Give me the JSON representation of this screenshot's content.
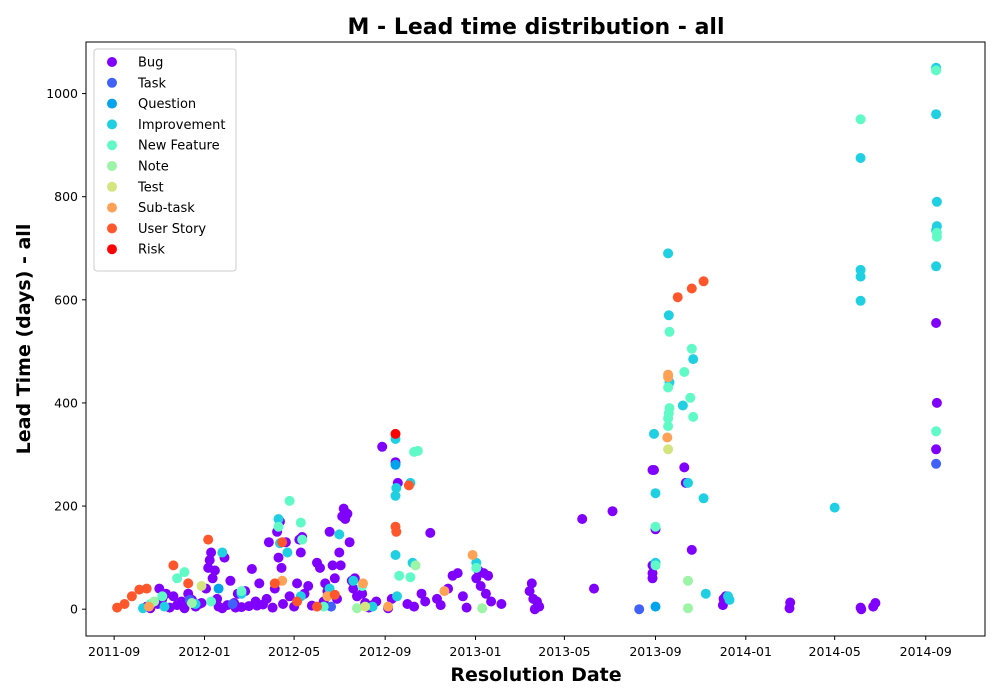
{
  "chart_data": {
    "type": "scatter",
    "title": "M - Lead time distribution - all",
    "xlabel": "Resolution Date",
    "ylabel": "Lead Time (days) - all",
    "x_ticks": [
      "2011-09",
      "2012-01",
      "2012-05",
      "2012-09",
      "2013-01",
      "2013-05",
      "2013-09",
      "2014-01",
      "2014-05",
      "2014-09"
    ],
    "y_ticks": [
      0,
      200,
      400,
      600,
      800,
      1000
    ],
    "xlim": [
      "2011-07-25",
      "2014-11-20"
    ],
    "ylim": [
      -52,
      1100
    ],
    "grid": false,
    "legend_position": "top-left",
    "series": [
      {
        "name": "Bug",
        "color": "#8000ff",
        "points": [
          [
            "2011-10-15",
            5
          ],
          [
            "2011-10-20",
            2
          ],
          [
            "2011-10-30",
            10
          ],
          [
            "2011-11-05",
            20
          ],
          [
            "2011-11-10",
            30
          ],
          [
            "2011-11-15",
            3
          ],
          [
            "2011-11-20",
            25
          ],
          [
            "2011-11-25",
            8
          ],
          [
            "2011-12-01",
            15
          ],
          [
            "2011-12-05",
            2
          ],
          [
            "2011-12-10",
            30
          ],
          [
            "2011-12-15",
            18
          ],
          [
            "2011-12-20",
            5
          ],
          [
            "2011-12-25",
            10
          ],
          [
            "2011-12-28",
            12
          ],
          [
            "2012-01-03",
            40
          ],
          [
            "2012-01-06",
            80
          ],
          [
            "2012-01-08",
            95
          ],
          [
            "2012-01-10",
            110
          ],
          [
            "2012-01-12",
            60
          ],
          [
            "2012-01-15",
            75
          ],
          [
            "2012-01-18",
            20
          ],
          [
            "2012-01-20",
            5
          ],
          [
            "2012-01-25",
            2
          ],
          [
            "2012-01-28",
            100
          ],
          [
            "2012-02-01",
            8
          ],
          [
            "2012-02-05",
            55
          ],
          [
            "2012-02-10",
            12
          ],
          [
            "2012-02-15",
            30
          ],
          [
            "2012-02-20",
            4
          ],
          [
            "2012-02-25",
            35
          ],
          [
            "2012-03-01",
            6
          ],
          [
            "2012-03-05",
            78
          ],
          [
            "2012-03-10",
            15
          ],
          [
            "2012-03-15",
            50
          ],
          [
            "2012-03-20",
            9
          ],
          [
            "2012-03-25",
            20
          ],
          [
            "2012-03-28",
            130
          ],
          [
            "2012-04-02",
            3
          ],
          [
            "2012-04-05",
            40
          ],
          [
            "2012-04-08",
            150
          ],
          [
            "2012-04-10",
            100
          ],
          [
            "2012-04-12",
            170
          ],
          [
            "2012-04-14",
            80
          ],
          [
            "2012-04-16",
            10
          ],
          [
            "2012-04-20",
            130
          ],
          [
            "2012-04-25",
            25
          ],
          [
            "2012-05-01",
            5
          ],
          [
            "2012-05-05",
            50
          ],
          [
            "2012-05-08",
            135
          ],
          [
            "2012-05-10",
            110
          ],
          [
            "2012-05-12",
            140
          ],
          [
            "2012-05-15",
            30
          ],
          [
            "2012-05-20",
            45
          ],
          [
            "2012-05-25",
            7
          ],
          [
            "2012-06-01",
            90
          ],
          [
            "2012-06-05",
            80
          ],
          [
            "2012-06-10",
            15
          ],
          [
            "2012-06-15",
            35
          ],
          [
            "2012-06-18",
            150
          ],
          [
            "2012-06-22",
            85
          ],
          [
            "2012-06-25",
            60
          ],
          [
            "2012-06-28",
            20
          ],
          [
            "2012-07-01",
            110
          ],
          [
            "2012-07-03",
            85
          ],
          [
            "2012-07-05",
            180
          ],
          [
            "2012-07-07",
            195
          ],
          [
            "2012-07-09",
            175
          ],
          [
            "2012-07-12",
            185
          ],
          [
            "2012-07-15",
            130
          ],
          [
            "2012-07-18",
            55
          ],
          [
            "2012-07-20",
            40
          ],
          [
            "2012-07-25",
            25
          ],
          [
            "2012-08-01",
            30
          ],
          [
            "2012-08-05",
            12
          ],
          [
            "2012-08-10",
            3
          ],
          [
            "2012-08-15",
            8
          ],
          [
            "2012-08-20",
            15
          ],
          [
            "2012-08-28",
            315
          ],
          [
            "2012-09-05",
            2
          ],
          [
            "2012-09-10",
            20
          ],
          [
            "2012-09-15",
            285
          ],
          [
            "2012-09-18",
            245
          ],
          [
            "2012-10-01",
            10
          ],
          [
            "2012-10-10",
            5
          ],
          [
            "2012-10-20",
            30
          ],
          [
            "2012-10-25",
            15
          ],
          [
            "2012-11-01",
            148
          ],
          [
            "2012-11-10",
            20
          ],
          [
            "2012-11-15",
            8
          ],
          [
            "2012-11-25",
            40
          ],
          [
            "2012-12-01",
            65
          ],
          [
            "2012-12-08",
            70
          ],
          [
            "2012-12-15",
            25
          ],
          [
            "2012-12-20",
            3
          ],
          [
            "2013-01-02",
            60
          ],
          [
            "2013-01-05",
            75
          ],
          [
            "2013-01-08",
            45
          ],
          [
            "2013-01-12",
            70
          ],
          [
            "2013-01-15",
            30
          ],
          [
            "2013-01-18",
            65
          ],
          [
            "2013-01-22",
            15
          ],
          [
            "2013-02-05",
            10
          ],
          [
            "2013-03-15",
            35
          ],
          [
            "2013-03-18",
            50
          ],
          [
            "2013-03-20",
            20
          ],
          [
            "2013-03-22",
            0
          ],
          [
            "2013-03-25",
            15
          ],
          [
            "2013-03-28",
            5
          ],
          [
            "2013-05-25",
            175
          ],
          [
            "2013-06-10",
            40
          ],
          [
            "2013-07-05",
            190
          ],
          [
            "2013-08-28",
            270
          ],
          [
            "2013-08-30",
            270
          ],
          [
            "2013-09-01",
            155
          ],
          [
            "2013-08-28",
            85
          ],
          [
            "2013-08-28",
            60
          ],
          [
            "2013-08-28",
            70
          ],
          [
            "2013-10-10",
            275
          ],
          [
            "2013-10-12",
            245
          ],
          [
            "2013-10-20",
            115
          ],
          [
            "2013-12-01",
            8
          ],
          [
            "2013-12-02",
            20
          ],
          [
            "2013-12-05",
            25
          ],
          [
            "2014-03-01",
            2
          ],
          [
            "2014-03-02",
            13
          ],
          [
            "2014-06-05",
            3
          ],
          [
            "2014-06-06",
            0
          ],
          [
            "2014-06-22",
            5
          ],
          [
            "2014-06-25",
            12
          ],
          [
            "2014-09-15",
            555
          ],
          [
            "2014-09-16",
            400
          ],
          [
            "2014-09-15",
            310
          ],
          [
            "2011-11-01",
            40
          ],
          [
            "2012-06-12",
            50
          ],
          [
            "2012-07-22",
            60
          ],
          [
            "2012-03-12",
            7
          ],
          [
            "2012-02-12",
            3
          ]
        ]
      },
      {
        "name": "Task",
        "color": "#4062fa",
        "points": [
          [
            "2011-12-12",
            18
          ],
          [
            "2012-02-08",
            10
          ],
          [
            "2012-06-20",
            5
          ],
          [
            "2013-08-10",
            0
          ],
          [
            "2014-09-15",
            282
          ]
        ]
      },
      {
        "name": "Question",
        "color": "#00a4ec",
        "points": [
          [
            "2012-01-20",
            40
          ],
          [
            "2012-09-15",
            280
          ],
          [
            "2013-09-01",
            5
          ]
        ]
      },
      {
        "name": "Improvement",
        "color": "#1fd0e2",
        "points": [
          [
            "2011-10-10",
            2
          ],
          [
            "2011-11-08",
            5
          ],
          [
            "2011-12-20",
            10
          ],
          [
            "2012-01-25",
            110
          ],
          [
            "2012-02-20",
            30
          ],
          [
            "2012-04-10",
            175
          ],
          [
            "2012-04-12",
            128
          ],
          [
            "2012-04-22",
            110
          ],
          [
            "2012-05-10",
            25
          ],
          [
            "2012-06-18",
            40
          ],
          [
            "2012-07-01",
            145
          ],
          [
            "2012-07-20",
            55
          ],
          [
            "2012-08-15",
            5
          ],
          [
            "2012-09-15",
            330
          ],
          [
            "2012-09-15",
            220
          ],
          [
            "2012-09-16",
            235
          ],
          [
            "2012-09-15",
            105
          ],
          [
            "2012-09-17",
            25
          ],
          [
            "2012-10-05",
            245
          ],
          [
            "2012-10-08",
            90
          ],
          [
            "2013-01-02",
            90
          ],
          [
            "2013-08-30",
            340
          ],
          [
            "2013-09-01",
            225
          ],
          [
            "2013-09-01",
            90
          ],
          [
            "2013-09-18",
            690
          ],
          [
            "2013-09-19",
            570
          ],
          [
            "2013-09-20",
            440
          ],
          [
            "2013-10-08",
            395
          ],
          [
            "2013-10-15",
            245
          ],
          [
            "2013-10-22",
            485
          ],
          [
            "2013-11-05",
            215
          ],
          [
            "2013-11-08",
            30
          ],
          [
            "2013-12-08",
            25
          ],
          [
            "2013-12-10",
            18
          ],
          [
            "2014-05-01",
            197
          ],
          [
            "2014-06-05",
            875
          ],
          [
            "2014-06-05",
            658
          ],
          [
            "2014-06-05",
            645
          ],
          [
            "2014-06-05",
            598
          ],
          [
            "2014-09-15",
            1050
          ],
          [
            "2014-09-15",
            960
          ],
          [
            "2014-09-16",
            790
          ],
          [
            "2014-09-16",
            743
          ],
          [
            "2014-09-15",
            735
          ],
          [
            "2014-09-15",
            665
          ]
        ]
      },
      {
        "name": "New Feature",
        "color": "#60fac7",
        "points": [
          [
            "2011-10-20",
            10
          ],
          [
            "2011-11-05",
            25
          ],
          [
            "2011-11-25",
            60
          ],
          [
            "2011-12-05",
            72
          ],
          [
            "2012-01-10",
            15
          ],
          [
            "2012-02-20",
            35
          ],
          [
            "2012-04-10",
            160
          ],
          [
            "2012-04-25",
            210
          ],
          [
            "2012-05-10",
            168
          ],
          [
            "2012-05-12",
            135
          ],
          [
            "2012-06-10",
            5
          ],
          [
            "2012-08-01",
            45
          ],
          [
            "2012-09-20",
            65
          ],
          [
            "2012-10-05",
            62
          ],
          [
            "2012-10-10",
            305
          ],
          [
            "2012-10-15",
            307
          ],
          [
            "2013-01-02",
            80
          ],
          [
            "2013-09-01",
            160
          ],
          [
            "2013-09-01",
            85
          ],
          [
            "2013-09-18",
            355
          ],
          [
            "2013-09-18",
            370
          ],
          [
            "2013-09-19",
            380
          ],
          [
            "2013-09-20",
            390
          ],
          [
            "2013-09-18",
            430
          ],
          [
            "2013-09-20",
            538
          ],
          [
            "2013-10-10",
            460
          ],
          [
            "2013-10-18",
            410
          ],
          [
            "2013-10-20",
            505
          ],
          [
            "2013-10-22",
            373
          ],
          [
            "2014-06-05",
            950
          ],
          [
            "2014-09-15",
            1045
          ],
          [
            "2014-09-16",
            730
          ],
          [
            "2014-09-16",
            722
          ],
          [
            "2014-09-15",
            345
          ]
        ]
      },
      {
        "name": "Note",
        "color": "#9cf4a6",
        "points": [
          [
            "2011-10-25",
            15
          ],
          [
            "2011-12-15",
            12
          ],
          [
            "2012-07-25",
            2
          ],
          [
            "2012-10-12",
            85
          ],
          [
            "2013-01-10",
            2
          ],
          [
            "2013-10-15",
            55
          ],
          [
            "2013-10-15",
            2
          ]
        ]
      },
      {
        "name": "Test",
        "color": "#d4e47e",
        "points": [
          [
            "2011-12-28",
            45
          ],
          [
            "2012-08-05",
            5
          ],
          [
            "2013-09-18",
            310
          ]
        ]
      },
      {
        "name": "Sub-task",
        "color": "#ffa256",
        "points": [
          [
            "2011-10-18",
            5
          ],
          [
            "2012-04-15",
            55
          ],
          [
            "2012-06-15",
            25
          ],
          [
            "2012-08-02",
            50
          ],
          [
            "2012-09-05",
            5
          ],
          [
            "2012-11-20",
            35
          ],
          [
            "2012-12-28",
            105
          ],
          [
            "2013-09-18",
            455
          ],
          [
            "2013-09-18",
            450
          ],
          [
            "2013-09-17",
            333
          ]
        ]
      },
      {
        "name": "User Story",
        "color": "#ff562c",
        "points": [
          [
            "2011-09-05",
            3
          ],
          [
            "2011-09-15",
            10
          ],
          [
            "2011-09-25",
            25
          ],
          [
            "2011-10-05",
            38
          ],
          [
            "2011-10-15",
            40
          ],
          [
            "2011-11-20",
            85
          ],
          [
            "2011-12-10",
            50
          ],
          [
            "2012-01-06",
            135
          ],
          [
            "2012-04-05",
            50
          ],
          [
            "2012-04-15",
            130
          ],
          [
            "2012-05-05",
            15
          ],
          [
            "2012-06-01",
            5
          ],
          [
            "2012-06-25",
            28
          ],
          [
            "2012-09-15",
            160
          ],
          [
            "2012-09-16",
            150
          ],
          [
            "2012-10-03",
            240
          ],
          [
            "2013-10-01",
            605
          ],
          [
            "2013-10-20",
            622
          ],
          [
            "2013-11-05",
            636
          ]
        ]
      },
      {
        "name": "Risk",
        "color": "#ff0000",
        "points": [
          [
            "2012-09-15",
            340
          ]
        ]
      }
    ]
  }
}
